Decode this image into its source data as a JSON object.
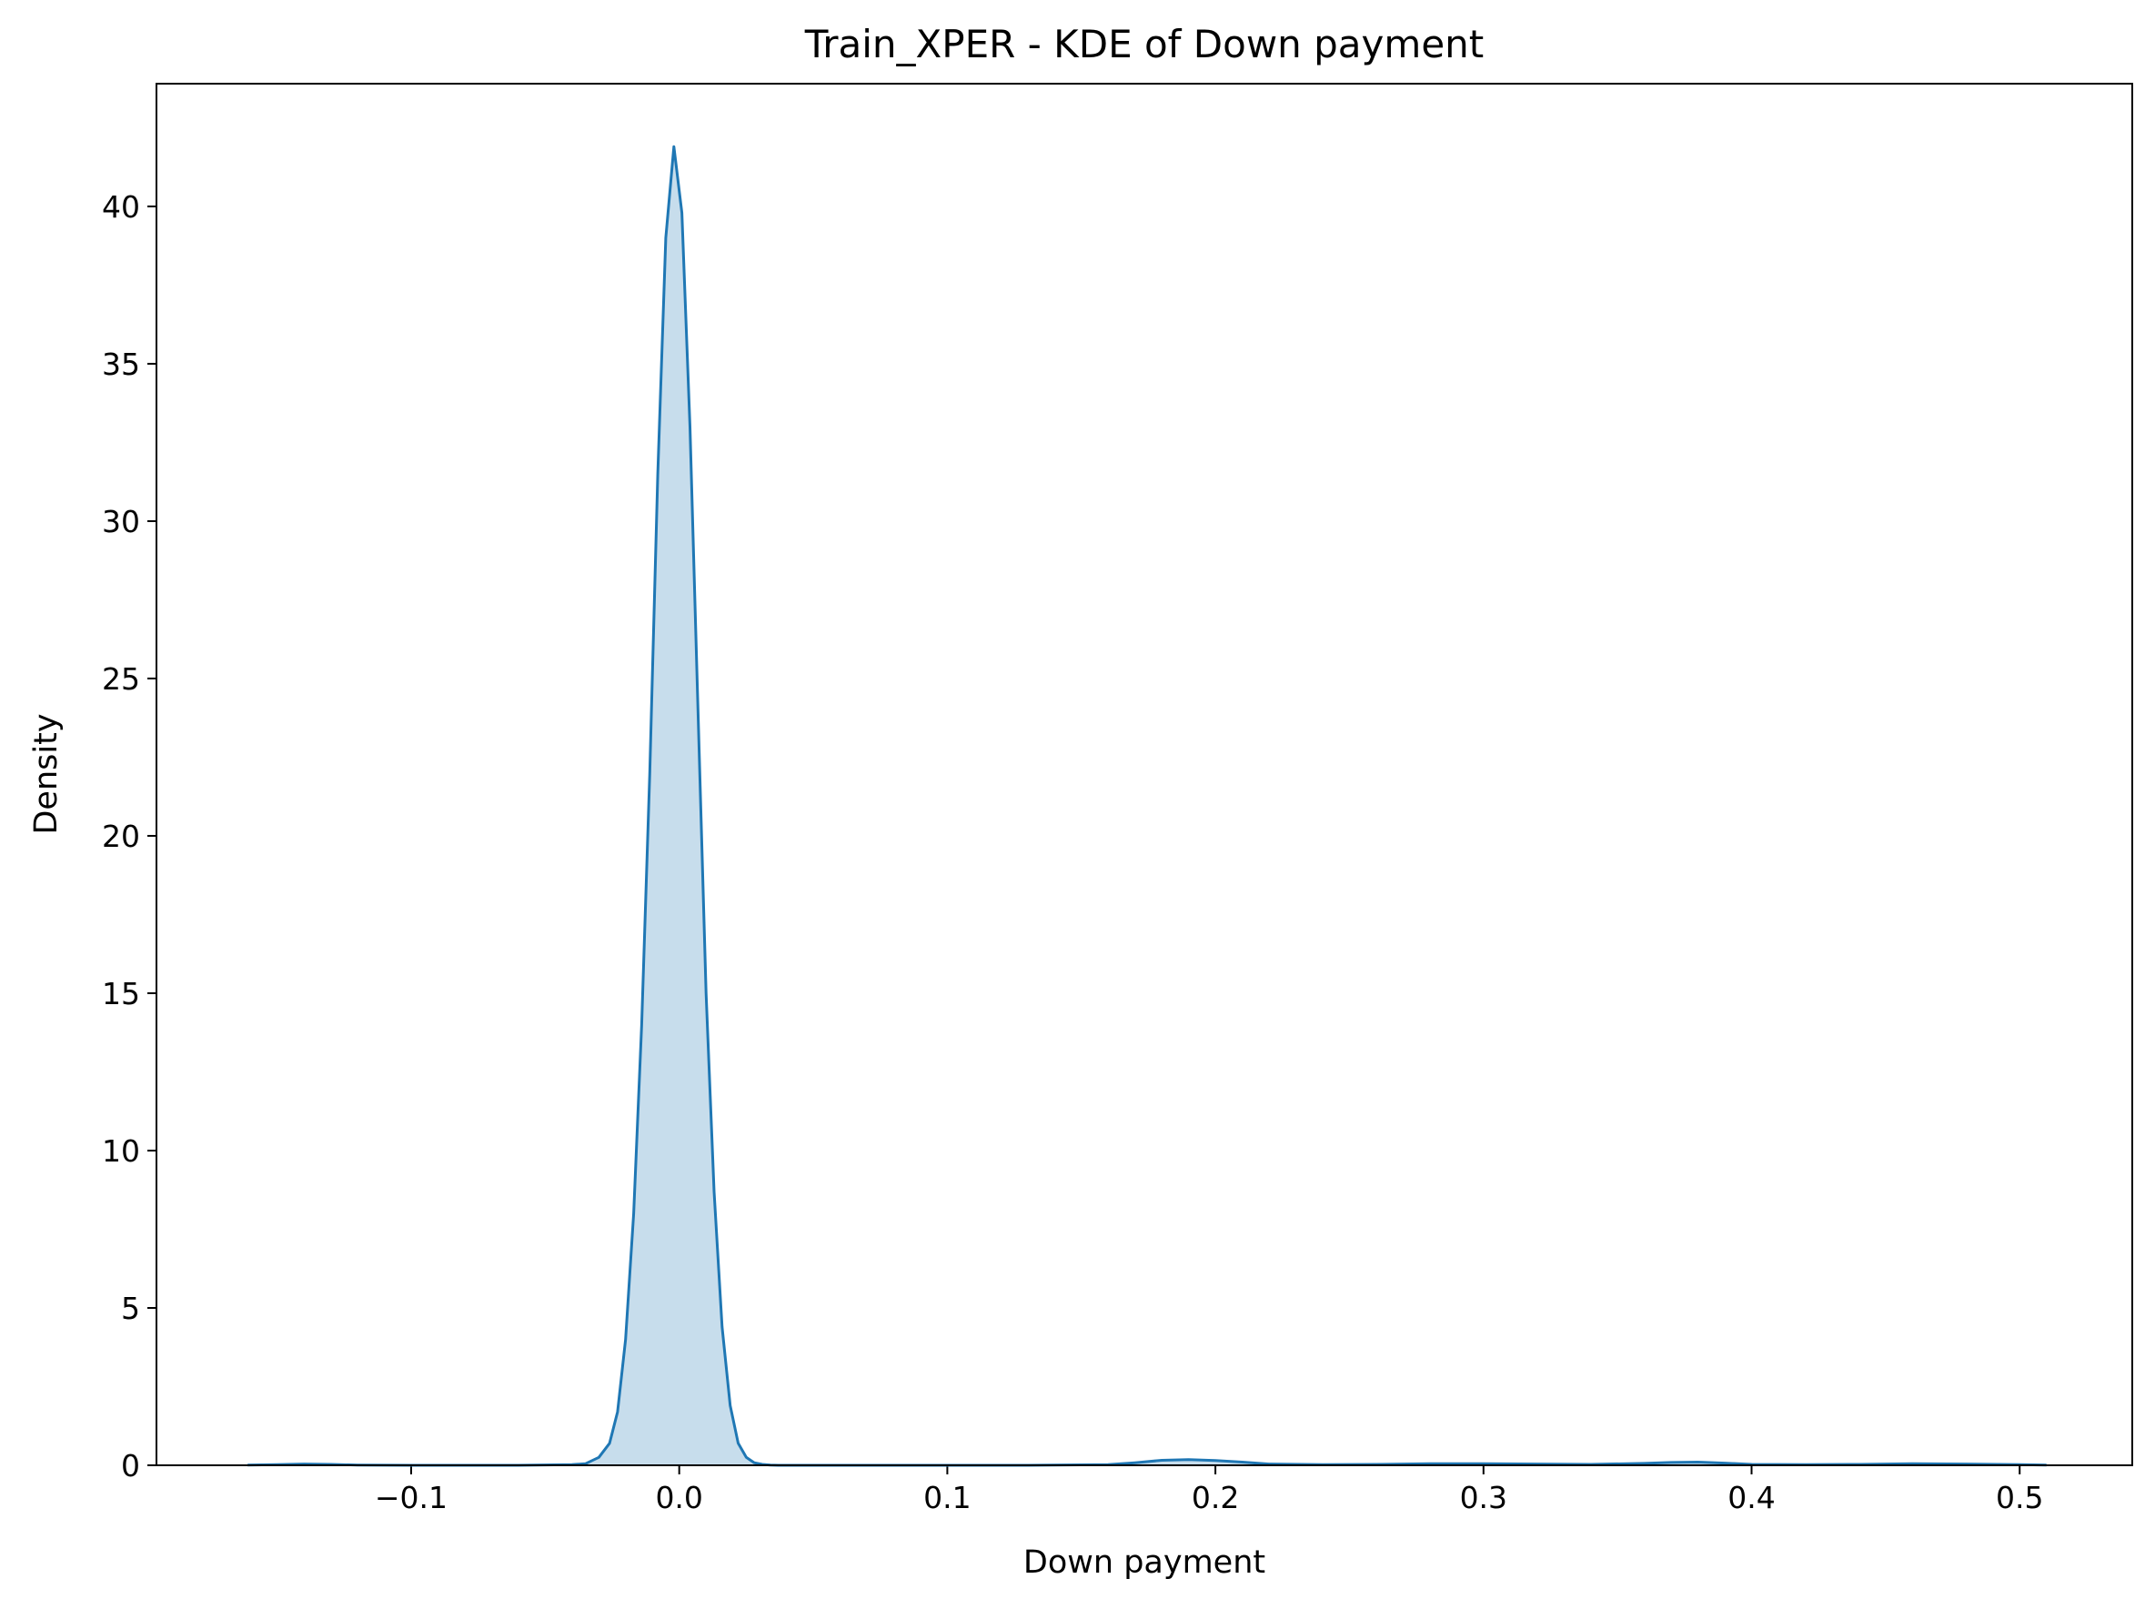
{
  "chart_data": {
    "type": "area",
    "title": "Train_XPER - KDE of Down payment",
    "xlabel": "Down payment",
    "ylabel": "Density",
    "xlim": [
      -0.195,
      0.542
    ],
    "ylim": [
      0,
      43.9
    ],
    "xticks": [
      -0.1,
      0.0,
      0.1,
      0.2,
      0.3,
      0.4,
      0.5
    ],
    "xtick_labels": [
      "−0.1",
      "0.0",
      "0.1",
      "0.2",
      "0.3",
      "0.4",
      "0.5"
    ],
    "yticks": [
      0,
      5,
      10,
      15,
      20,
      25,
      30,
      35,
      40
    ],
    "ytick_labels": [
      "0",
      "5",
      "10",
      "15",
      "20",
      "25",
      "30",
      "35",
      "40"
    ],
    "grid": false,
    "legend": "none",
    "colors": {
      "line": "#1f77b4",
      "fill": "#1f77b4",
      "fill_opacity": 0.25
    },
    "series": [
      {
        "x": [
          -0.161,
          -0.15,
          -0.14,
          -0.13,
          -0.12,
          -0.1,
          -0.08,
          -0.06,
          -0.04,
          -0.035,
          -0.03,
          -0.026,
          -0.023,
          -0.02,
          -0.017,
          -0.014,
          -0.011,
          -0.008,
          -0.005,
          -0.002,
          0.001,
          0.004,
          0.007,
          0.01,
          0.013,
          0.016,
          0.019,
          0.022,
          0.025,
          0.028,
          0.031,
          0.034,
          0.037,
          0.04,
          0.045,
          0.05,
          0.08,
          0.1,
          0.13,
          0.16,
          0.17,
          0.18,
          0.19,
          0.2,
          0.21,
          0.22,
          0.24,
          0.26,
          0.28,
          0.3,
          0.32,
          0.34,
          0.36,
          0.37,
          0.38,
          0.39,
          0.4,
          0.42,
          0.44,
          0.46,
          0.48,
          0.5,
          0.51
        ],
        "y": [
          0.01,
          0.02,
          0.04,
          0.03,
          0.01,
          0.0,
          0.0,
          0.0,
          0.02,
          0.05,
          0.25,
          0.7,
          1.7,
          4.0,
          8.0,
          14.0,
          22.0,
          31.5,
          39.0,
          41.9,
          39.8,
          33.0,
          24.0,
          15.0,
          8.7,
          4.4,
          1.9,
          0.7,
          0.25,
          0.08,
          0.03,
          0.01,
          0.0,
          0.0,
          0.0,
          0.0,
          0.0,
          0.0,
          0.0,
          0.02,
          0.08,
          0.16,
          0.18,
          0.15,
          0.1,
          0.04,
          0.02,
          0.03,
          0.05,
          0.05,
          0.04,
          0.03,
          0.06,
          0.09,
          0.1,
          0.07,
          0.03,
          0.02,
          0.03,
          0.05,
          0.04,
          0.02,
          0.01
        ]
      }
    ]
  }
}
